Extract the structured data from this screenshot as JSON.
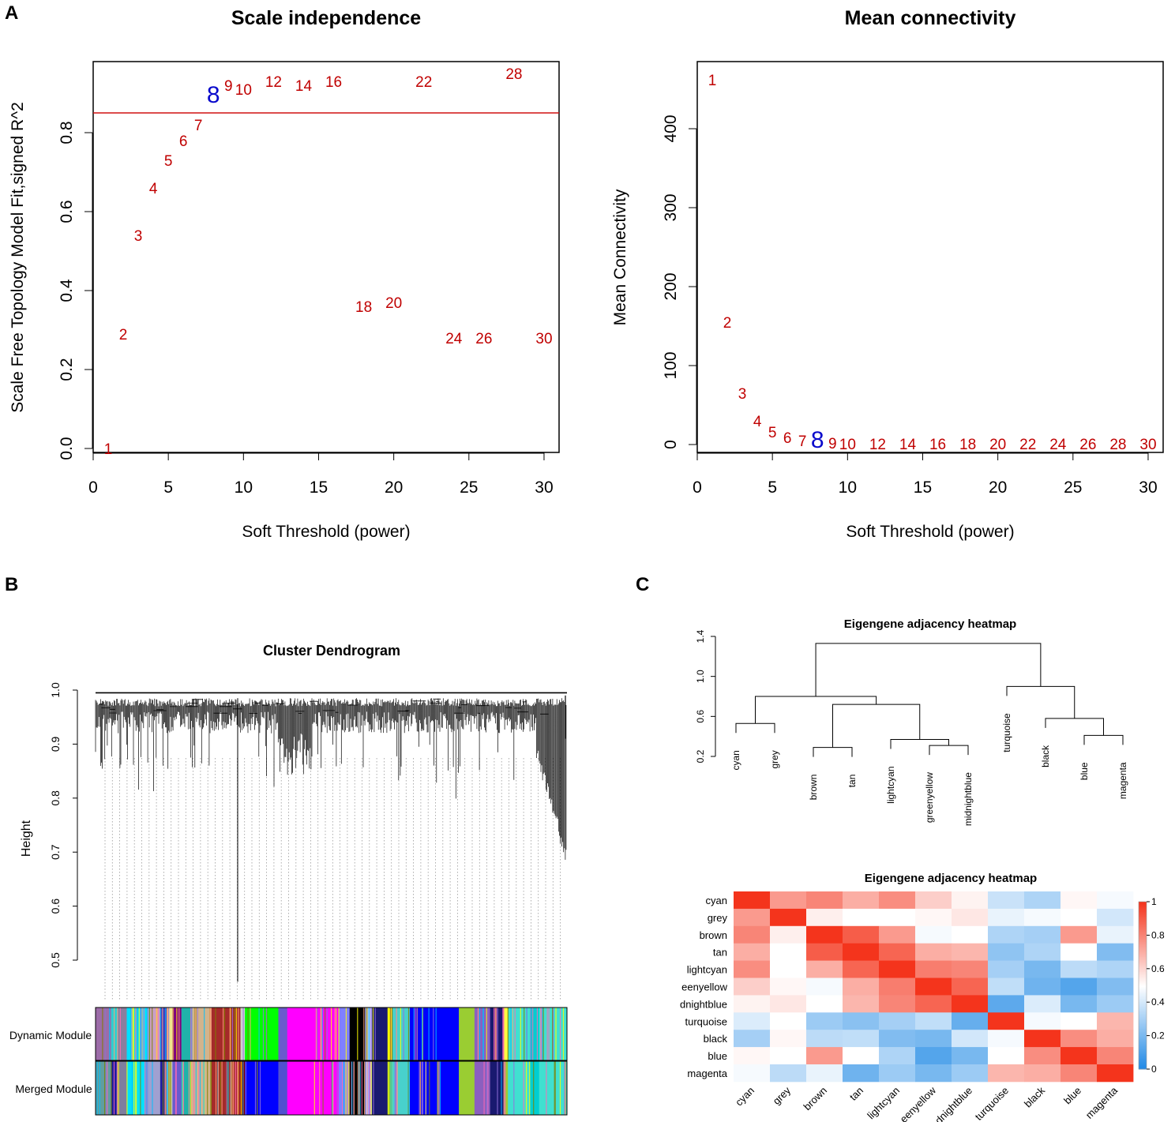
{
  "panel_labels": {
    "a": "A",
    "b": "B",
    "c": "C"
  },
  "colors": {
    "point": "#c00000",
    "highlight": "#0a0acc",
    "cutoff_line": "#d01010",
    "heat_low": "#1e88e5",
    "heat_mid": "#ffffff",
    "heat_high": "#f4341c"
  },
  "chart_data": [
    {
      "id": "scale_independence",
      "type": "scatter",
      "title": "Scale independence",
      "xlabel": "Soft Threshold (power)",
      "ylabel": "Scale Free Topology Model Fit,signed R^2",
      "xlim": [
        0,
        31
      ],
      "ylim": [
        -0.01,
        0.98
      ],
      "xticks": [
        0,
        5,
        10,
        15,
        20,
        25,
        30
      ],
      "yticks": [
        0.0,
        0.2,
        0.4,
        0.6,
        0.8
      ],
      "cutoff_line": 0.85,
      "highlight": 8,
      "points": [
        {
          "x": 1,
          "y": 0.0,
          "label": "1"
        },
        {
          "x": 2,
          "y": 0.29,
          "label": "2"
        },
        {
          "x": 3,
          "y": 0.54,
          "label": "3"
        },
        {
          "x": 4,
          "y": 0.66,
          "label": "4"
        },
        {
          "x": 5,
          "y": 0.73,
          "label": "5"
        },
        {
          "x": 6,
          "y": 0.78,
          "label": "6"
        },
        {
          "x": 7,
          "y": 0.82,
          "label": "7"
        },
        {
          "x": 8,
          "y": 0.89,
          "label": "8"
        },
        {
          "x": 9,
          "y": 0.92,
          "label": "9"
        },
        {
          "x": 10,
          "y": 0.91,
          "label": "10"
        },
        {
          "x": 12,
          "y": 0.93,
          "label": "12"
        },
        {
          "x": 14,
          "y": 0.92,
          "label": "14"
        },
        {
          "x": 16,
          "y": 0.93,
          "label": "16"
        },
        {
          "x": 18,
          "y": 0.36,
          "label": "18"
        },
        {
          "x": 20,
          "y": 0.37,
          "label": "20"
        },
        {
          "x": 22,
          "y": 0.93,
          "label": "22"
        },
        {
          "x": 24,
          "y": 0.28,
          "label": "24"
        },
        {
          "x": 26,
          "y": 0.28,
          "label": "26"
        },
        {
          "x": 28,
          "y": 0.95,
          "label": "28"
        },
        {
          "x": 30,
          "y": 0.28,
          "label": "30"
        }
      ]
    },
    {
      "id": "mean_connectivity",
      "type": "scatter",
      "title": "Mean connectivity",
      "xlabel": "Soft Threshold (power)",
      "ylabel": "Mean Connectivity",
      "xlim": [
        0,
        31
      ],
      "ylim": [
        -10,
        485
      ],
      "xticks": [
        0,
        5,
        10,
        15,
        20,
        25,
        30
      ],
      "yticks": [
        0,
        100,
        200,
        300,
        400
      ],
      "highlight": 8,
      "points": [
        {
          "x": 1,
          "y": 462,
          "label": "1"
        },
        {
          "x": 2,
          "y": 155,
          "label": "2"
        },
        {
          "x": 3,
          "y": 65,
          "label": "3"
        },
        {
          "x": 4,
          "y": 30,
          "label": "4"
        },
        {
          "x": 5,
          "y": 16,
          "label": "5"
        },
        {
          "x": 6,
          "y": 9,
          "label": "6"
        },
        {
          "x": 7,
          "y": 5,
          "label": "7"
        },
        {
          "x": 8,
          "y": 3,
          "label": "8"
        },
        {
          "x": 9,
          "y": 2,
          "label": "9"
        },
        {
          "x": 10,
          "y": 1,
          "label": "10"
        },
        {
          "x": 12,
          "y": 1,
          "label": "12"
        },
        {
          "x": 14,
          "y": 1,
          "label": "14"
        },
        {
          "x": 16,
          "y": 1,
          "label": "16"
        },
        {
          "x": 18,
          "y": 1,
          "label": "18"
        },
        {
          "x": 20,
          "y": 1,
          "label": "20"
        },
        {
          "x": 22,
          "y": 1,
          "label": "22"
        },
        {
          "x": 24,
          "y": 1,
          "label": "24"
        },
        {
          "x": 26,
          "y": 1,
          "label": "26"
        },
        {
          "x": 28,
          "y": 1,
          "label": "28"
        },
        {
          "x": 30,
          "y": 1,
          "label": "30"
        }
      ]
    },
    {
      "id": "cluster_dendrogram",
      "type": "dendrogram",
      "title": "Cluster Dendrogram",
      "ylabel": "Height",
      "ylim": [
        0.45,
        1.0
      ],
      "yticks": [
        0.5,
        0.6,
        0.7,
        0.8,
        0.9,
        1.0
      ],
      "min_height": 0.46,
      "row_labels": [
        "Dynamic Module",
        "Merged Module"
      ],
      "dynamic_segments": [
        {
          "color": "#9c6ca8",
          "w": 14
        },
        {
          "color": "#2ecfd0",
          "w": 6
        },
        {
          "color": "#8a7f9e",
          "w": 8
        },
        {
          "color": "#00e0ff",
          "w": 20
        },
        {
          "color": "#c8a0c8",
          "w": 10
        },
        {
          "color": "#4040c0",
          "w": 6
        },
        {
          "color": "#f0e68c",
          "w": 5
        },
        {
          "color": "#800080",
          "w": 8
        },
        {
          "color": "#20b2aa",
          "w": 9
        },
        {
          "color": "#d2b48c",
          "w": 18
        },
        {
          "color": "#a52a2a",
          "w": 26
        },
        {
          "color": "#cfcfcf",
          "w": 4
        },
        {
          "color": "#00ff00",
          "w": 30
        },
        {
          "color": "#6a5acd",
          "w": 8
        },
        {
          "color": "#ff00ff",
          "w": 46
        },
        {
          "color": "#8080ff",
          "w": 10
        },
        {
          "color": "#000000",
          "w": 14
        },
        {
          "color": "#c0c0ff",
          "w": 6
        },
        {
          "color": "#191970",
          "w": 14
        },
        {
          "color": "#ffff00",
          "w": 4
        },
        {
          "color": "#48d1cc",
          "w": 16
        },
        {
          "color": "#0000ff",
          "w": 44
        },
        {
          "color": "#9acd32",
          "w": 14
        },
        {
          "color": "#8b5fbf",
          "w": 14
        },
        {
          "color": "#191970",
          "w": 12
        },
        {
          "color": "#ffff40",
          "w": 4
        },
        {
          "color": "#40e0d0",
          "w": 20
        },
        {
          "color": "#00ced1",
          "w": 8
        },
        {
          "color": "#40e0d0",
          "w": 25
        }
      ],
      "merged_segments": [
        {
          "color": "#5f9ea0",
          "w": 14
        },
        {
          "color": "#1a1aa0",
          "w": 6
        },
        {
          "color": "#7f7f9e",
          "w": 8
        },
        {
          "color": "#00e0ff",
          "w": 20
        },
        {
          "color": "#a0a0d0",
          "w": 10
        },
        {
          "color": "#2020a0",
          "w": 6
        },
        {
          "color": "#c0c0c0",
          "w": 5
        },
        {
          "color": "#6a5acd",
          "w": 8
        },
        {
          "color": "#20b2aa",
          "w": 9
        },
        {
          "color": "#d2b48c",
          "w": 18
        },
        {
          "color": "#a52a2a",
          "w": 26
        },
        {
          "color": "#8b0000",
          "w": 4
        },
        {
          "color": "#0000ff",
          "w": 30
        },
        {
          "color": "#5050d0",
          "w": 8
        },
        {
          "color": "#ff00ff",
          "w": 46
        },
        {
          "color": "#8080ff",
          "w": 10
        },
        {
          "color": "#000000",
          "w": 14
        },
        {
          "color": "#b0b0ff",
          "w": 6
        },
        {
          "color": "#191970",
          "w": 14
        },
        {
          "color": "#9acd32",
          "w": 4
        },
        {
          "color": "#48d1cc",
          "w": 16
        },
        {
          "color": "#0000ff",
          "w": 44
        },
        {
          "color": "#9acd32",
          "w": 14
        },
        {
          "color": "#8b5fbf",
          "w": 14
        },
        {
          "color": "#191970",
          "w": 12
        },
        {
          "color": "#9acd32",
          "w": 4
        },
        {
          "color": "#40e0d0",
          "w": 20
        },
        {
          "color": "#00ced1",
          "w": 8
        },
        {
          "color": "#40e0d0",
          "w": 25
        }
      ]
    },
    {
      "id": "eigengene_dendrogram",
      "type": "dendrogram",
      "title": "Eigengene adjacency heatmap",
      "ylim": [
        0.2,
        1.4
      ],
      "yticks": [
        0.2,
        0.6,
        1.0,
        1.4
      ],
      "leaves": [
        "cyan",
        "grey",
        "brown",
        "tan",
        "lightcyan",
        "greenyellow",
        "midnightblue",
        "turquoise",
        "black",
        "blue",
        "magenta"
      ],
      "merges": [
        {
          "a": "L:cyan",
          "b": "L:grey",
          "h": 0.53,
          "id": "m1"
        },
        {
          "a": "L:brown",
          "b": "L:tan",
          "h": 0.29,
          "id": "m2"
        },
        {
          "a": "L:greenyellow",
          "b": "L:midnightblue",
          "h": 0.31,
          "id": "m3"
        },
        {
          "a": "L:lightcyan",
          "b": "m3",
          "h": 0.37,
          "id": "m4"
        },
        {
          "a": "m2",
          "b": "m4",
          "h": 0.72,
          "id": "m5"
        },
        {
          "a": "m1",
          "b": "m5",
          "h": 0.8,
          "id": "m6"
        },
        {
          "a": "L:blue",
          "b": "L:magenta",
          "h": 0.41,
          "id": "m7"
        },
        {
          "a": "L:black",
          "b": "m7",
          "h": 0.58,
          "id": "m8"
        },
        {
          "a": "L:turquoise",
          "b": "m8",
          "h": 0.9,
          "id": "m9"
        },
        {
          "a": "m6",
          "b": "m9",
          "h": 1.33,
          "id": "m10"
        }
      ]
    },
    {
      "id": "eigengene_heatmap",
      "type": "heatmap",
      "title": "Eigengene adjacency heatmap",
      "rows": [
        "cyan",
        "grey",
        "brown",
        "tan",
        "lightcyan",
        "greenyellow",
        "midnightblue",
        "turquoise",
        "black",
        "blue",
        "magenta"
      ],
      "row_display": [
        "cyan",
        "grey",
        "brown",
        "tan",
        "lightcyan",
        "eenyellow",
        "dnightblue",
        "turquoise",
        "black",
        "blue",
        "magenta"
      ],
      "col_display": [
        "cyan",
        "grey",
        "brown",
        "tan",
        "lightcyan",
        "eenyellow",
        "dnightblue",
        "turquoise",
        "black",
        "blue",
        "magenta"
      ],
      "colorbar_ticks": [
        0,
        0.2,
        0.4,
        0.6,
        0.8,
        1
      ],
      "colorbar_tick_labels": [
        "0",
        "0.2",
        "0.4",
        "0.6",
        "0.8",
        "1"
      ],
      "values": [
        [
          1.0,
          0.75,
          0.8,
          0.7,
          0.78,
          0.62,
          0.53,
          0.38,
          0.32,
          0.52,
          0.48
        ],
        [
          0.75,
          1.0,
          0.54,
          0.5,
          0.5,
          0.52,
          0.56,
          0.45,
          0.48,
          0.5,
          0.4
        ],
        [
          0.8,
          0.54,
          1.0,
          0.9,
          0.75,
          0.48,
          0.5,
          0.32,
          0.3,
          0.75,
          0.45
        ],
        [
          0.7,
          0.5,
          0.9,
          1.0,
          0.88,
          0.7,
          0.68,
          0.25,
          0.32,
          0.5,
          0.22
        ],
        [
          0.78,
          0.5,
          0.7,
          0.88,
          1.0,
          0.82,
          0.8,
          0.3,
          0.2,
          0.35,
          0.32
        ],
        [
          0.62,
          0.52,
          0.48,
          0.7,
          0.82,
          1.0,
          0.88,
          0.36,
          0.18,
          0.12,
          0.22
        ],
        [
          0.53,
          0.56,
          0.5,
          0.68,
          0.8,
          0.88,
          1.0,
          0.14,
          0.42,
          0.2,
          0.28
        ],
        [
          0.42,
          0.5,
          0.28,
          0.24,
          0.3,
          0.36,
          0.16,
          1.0,
          0.48,
          0.5,
          0.68
        ],
        [
          0.3,
          0.52,
          0.35,
          0.36,
          0.22,
          0.2,
          0.4,
          0.48,
          1.0,
          0.78,
          0.7
        ],
        [
          0.52,
          0.5,
          0.75,
          0.5,
          0.32,
          0.12,
          0.2,
          0.5,
          0.78,
          1.0,
          0.8
        ],
        [
          0.48,
          0.35,
          0.45,
          0.18,
          0.28,
          0.2,
          0.28,
          0.68,
          0.7,
          0.8,
          1.0
        ]
      ]
    }
  ]
}
